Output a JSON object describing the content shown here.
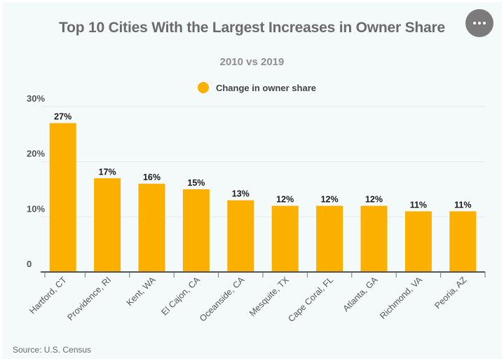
{
  "header": {
    "title": "Top 10 Cities With the Largest Increases in Owner Share",
    "subtitle": "2010 vs 2019",
    "menu_button": "more-options"
  },
  "footer": {
    "source": "Source: U.S. Census"
  },
  "colors": {
    "bar": "#fbb000",
    "background": "#f4f9f9",
    "grid": "#e6ecec",
    "axis": "#555555"
  },
  "chart_data": {
    "type": "bar",
    "title": "Top 10 Cities With the Largest Increases in Owner Share",
    "subtitle": "2010 vs 2019",
    "xlabel": "",
    "ylabel": "",
    "categories": [
      "Hartford, CT",
      "Providence, RI",
      "Kent, WA",
      "El Cajon, CA",
      "Oceanside, CA",
      "Mesquite, TX",
      "Cape Coral, FL",
      "Atlanta, GA",
      "Richmond, VA",
      "Peoria, AZ"
    ],
    "series": [
      {
        "name": "Change in owner share",
        "values": [
          27,
          17,
          16,
          15,
          13,
          12,
          12,
          12,
          11,
          11
        ]
      }
    ],
    "data_labels": [
      "27%",
      "17%",
      "16%",
      "15%",
      "13%",
      "12%",
      "12%",
      "12%",
      "11%",
      "11%"
    ],
    "yticks": [
      0,
      10,
      20,
      30
    ],
    "ytick_labels": [
      "0",
      "10%",
      "20%",
      "30%"
    ],
    "ylim": [
      0,
      30
    ],
    "grid": true,
    "legend": {
      "position": "top-center",
      "entries": [
        "Change in owner share"
      ]
    },
    "source": "Source: U.S. Census"
  }
}
